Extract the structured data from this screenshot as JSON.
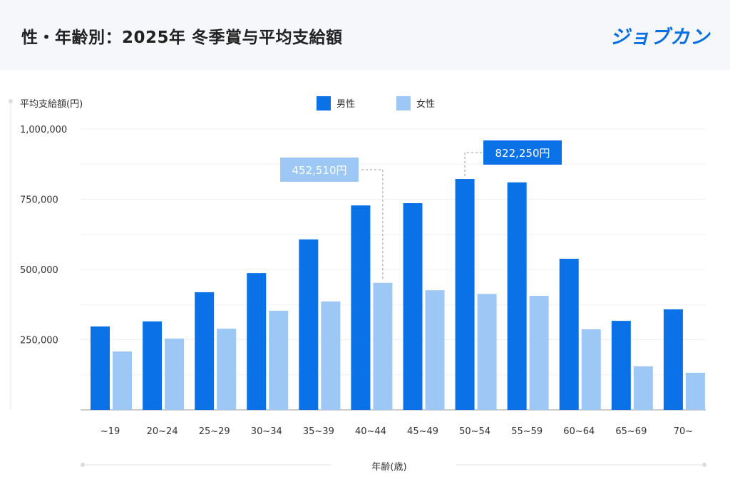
{
  "header": {
    "title": "性・年齢別：2025年 冬季賞与平均支給額",
    "logo": "ジョブカン"
  },
  "colors": {
    "male": "#0a72e6",
    "female": "#9dc8f5",
    "header_bg": "#f5f7fa"
  },
  "chart_data": {
    "type": "bar",
    "ylabel": "平均支給額(円)",
    "xlabel": "年齢(歳)",
    "ylim": [
      0,
      1000000
    ],
    "yticks": [
      250000,
      500000,
      750000,
      1000000
    ],
    "ytick_labels": [
      "250,000",
      "500,000",
      "750,000",
      "1,000,000"
    ],
    "grid": true,
    "legend": "top-center",
    "categories": [
      "~19",
      "20~24",
      "25~29",
      "30~34",
      "35~39",
      "40~44",
      "45~49",
      "50~54",
      "55~59",
      "60~64",
      "65~69",
      "70~"
    ],
    "series": [
      {
        "name": "男性",
        "values": [
          297000,
          315000,
          419000,
          487000,
          607000,
          728000,
          736000,
          822250,
          810000,
          538000,
          317000,
          358000
        ]
      },
      {
        "name": "女性",
        "values": [
          208000,
          254000,
          289000,
          353000,
          386000,
          452510,
          426000,
          413000,
          406000,
          287000,
          155000,
          132000
        ]
      }
    ],
    "annotations": [
      {
        "series": 1,
        "category": "40~44",
        "label": "452,510円"
      },
      {
        "series": 0,
        "category": "50~54",
        "label": "822,250円"
      }
    ]
  }
}
